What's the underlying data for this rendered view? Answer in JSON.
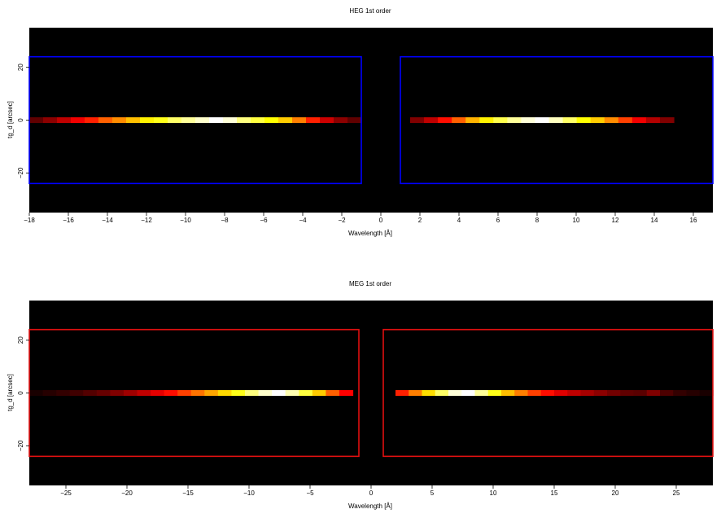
{
  "chart_data": [
    {
      "type": "heatmap",
      "title": "HEG 1st order",
      "xlabel": "Wavelength [Å]",
      "ylabel": "tg_d [arcsec]",
      "xlim": [
        -18,
        17
      ],
      "ylim": [
        -35,
        35
      ],
      "xticks": [
        -18,
        -16,
        -14,
        -12,
        -10,
        -8,
        -6,
        -4,
        -2,
        0,
        2,
        4,
        6,
        8,
        10,
        12,
        14,
        16
      ],
      "xtick_labels": [
        "−18",
        "−16",
        "−14",
        "−12",
        "−10",
        "−8",
        "−6",
        "−4",
        "−2",
        "0",
        "2",
        "4",
        "6",
        "8",
        "10",
        "12",
        "14",
        "16"
      ],
      "yticks": [
        -20,
        0,
        20
      ],
      "ytick_labels": [
        "−20",
        "0",
        "20"
      ],
      "colormap": "hot",
      "background_color": "#000000",
      "region_color": "#0000ff",
      "regions": [
        {
          "x0": -18,
          "x1": -1,
          "y0": -24,
          "y1": 24
        },
        {
          "x0": 1,
          "x1": 17,
          "y0": -24,
          "y1": 24
        }
      ],
      "strips": [
        {
          "x_start": -18,
          "x_end": -1,
          "intensity": [
            0.15,
            0.22,
            0.3,
            0.38,
            0.45,
            0.55,
            0.62,
            0.7,
            0.78,
            0.82,
            0.88,
            0.92,
            0.96,
            1.0,
            0.97,
            0.9,
            0.85,
            0.8,
            0.72,
            0.6,
            0.45,
            0.32,
            0.22,
            0.15
          ]
        },
        {
          "x_start": 1.5,
          "x_end": 15,
          "intensity": [
            0.2,
            0.3,
            0.42,
            0.55,
            0.68,
            0.78,
            0.86,
            0.92,
            0.97,
            1.0,
            0.95,
            0.88,
            0.8,
            0.72,
            0.62,
            0.5,
            0.38,
            0.28,
            0.2
          ]
        }
      ]
    },
    {
      "type": "heatmap",
      "title": "MEG 1st order",
      "xlabel": "Wavelength [Å]",
      "ylabel": "tg_d [arcsec]",
      "xlim": [
        -28,
        28
      ],
      "ylim": [
        -35,
        35
      ],
      "xticks": [
        -25,
        -20,
        -15,
        -10,
        -5,
        0,
        5,
        10,
        15,
        20,
        25
      ],
      "xtick_labels": [
        "−25",
        "−20",
        "−15",
        "−10",
        "−5",
        "0",
        "5",
        "10",
        "15",
        "20",
        "25"
      ],
      "yticks": [
        -20,
        0,
        20
      ],
      "ytick_labels": [
        "−20",
        "0",
        "20"
      ],
      "colormap": "hot",
      "background_color": "#000000",
      "region_color": "#e01010",
      "regions": [
        {
          "x0": -28,
          "x1": -1,
          "y0": -24,
          "y1": 24
        },
        {
          "x0": 1,
          "x1": 28,
          "y0": -24,
          "y1": 24
        }
      ],
      "strips": [
        {
          "x_start": -28,
          "x_end": -1.5,
          "intensity": [
            0.04,
            0.06,
            0.08,
            0.1,
            0.13,
            0.16,
            0.2,
            0.25,
            0.3,
            0.36,
            0.42,
            0.5,
            0.58,
            0.66,
            0.74,
            0.82,
            0.9,
            0.96,
            1.0,
            0.94,
            0.85,
            0.72,
            0.55,
            0.4
          ]
        },
        {
          "x_start": 2,
          "x_end": 28,
          "intensity": [
            0.45,
            0.6,
            0.75,
            0.88,
            0.97,
            1.0,
            0.92,
            0.82,
            0.7,
            0.6,
            0.5,
            0.42,
            0.35,
            0.3,
            0.26,
            0.22,
            0.18,
            0.15,
            0.14,
            0.2,
            0.12,
            0.08,
            0.06,
            0.04
          ]
        }
      ]
    }
  ]
}
